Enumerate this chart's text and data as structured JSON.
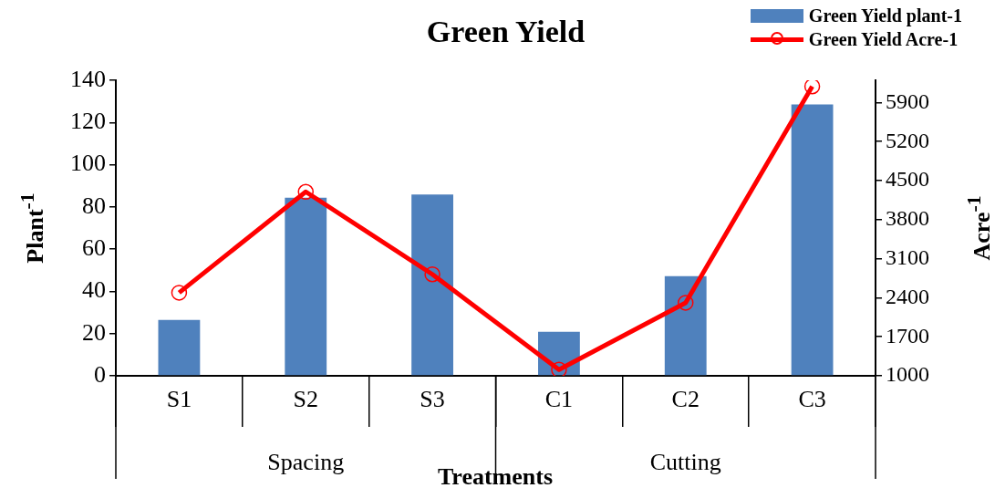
{
  "chart_data": {
    "type": "bar",
    "title": "Green Yield",
    "xlabel": "Treatments",
    "ylabel": "Plant$^{-1}$",
    "y2label": "Acre$^{-1}$",
    "categories": [
      "S1",
      "S2",
      "S3",
      "C1",
      "C2",
      "C3"
    ],
    "series": [
      {
        "name": "Green Yield plant-1",
        "color": "#4f81bd",
        "values": [
          26.5,
          84.4,
          85.9,
          20.9,
          47.2,
          128.6
        ]
      },
      {
        "name": "Green Yield Acre-1",
        "type": "line",
        "axis": "y2",
        "color": "#ff0000",
        "values": [
          2490,
          4300,
          2820,
          1110,
          2310,
          6190
        ]
      }
    ],
    "ylim": [
      0,
      140
    ],
    "yticks": [
      0,
      20,
      40,
      60,
      80,
      100,
      120,
      140
    ],
    "y2lim": [
      1000,
      6300
    ],
    "y2ticks": [
      1000,
      1700,
      2400,
      3100,
      3800,
      4500,
      5200,
      5900
    ],
    "annotations": [
      "Spacing",
      "Cutting"
    ],
    "grid": false,
    "legend": "top right",
    "marker": "circle",
    "line_style": "solid"
  }
}
